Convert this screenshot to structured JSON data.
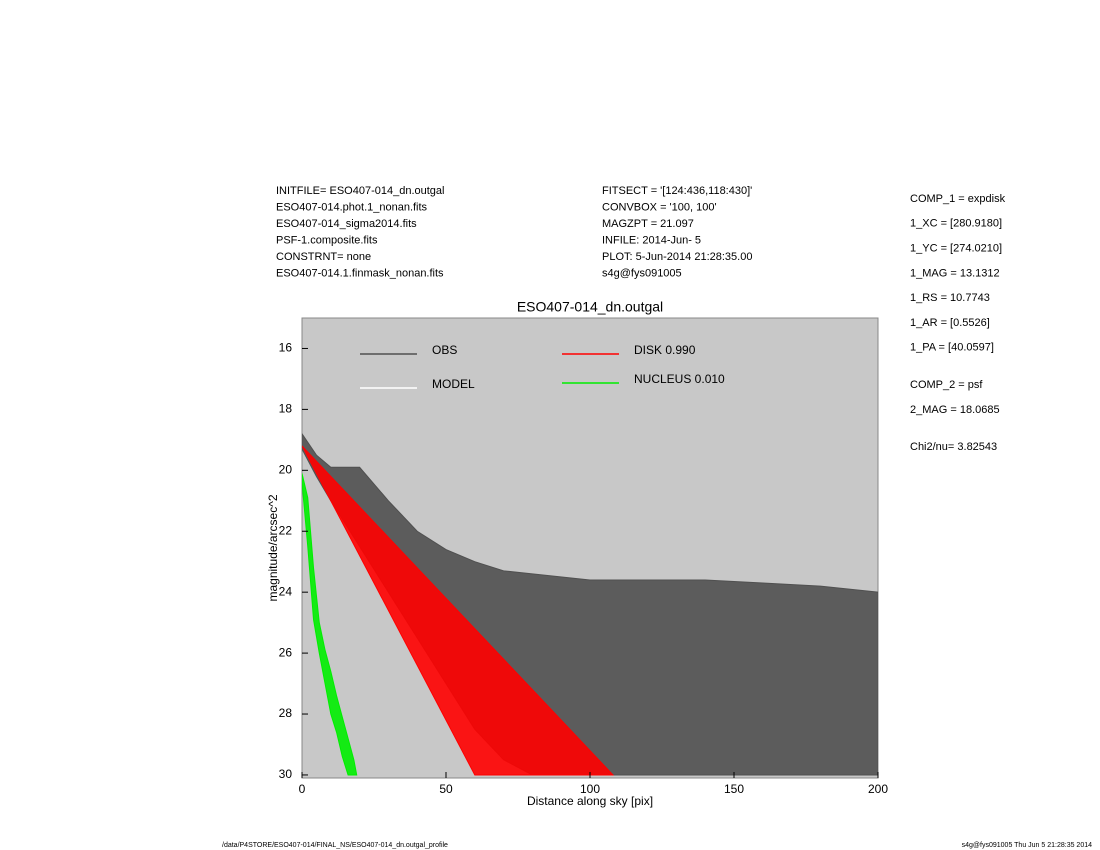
{
  "header_left": [
    "INITFILE= ESO407-014_dn.outgal",
    "ESO407-014.phot.1_nonan.fits",
    "ESO407-014_sigma2014.fits",
    "PSF-1.composite.fits",
    "CONSTRNT= none",
    "ESO407-014.1.finmask_nonan.fits"
  ],
  "header_middle": [
    "FITSECT = '[124:436,118:430]'",
    "CONVBOX = '100, 100'",
    "MAGZPT =              21.097",
    "INFILE: 2014-Jun- 5",
    "PLOT:  5-Jun-2014 21:28:35.00",
    "s4g@fys091005"
  ],
  "params_1": [
    "COMP_1  = expdisk",
    "1_XC    = [280.9180]",
    "1_YC    = [274.0210]",
    "1_MAG   = 13.1312",
    "1_RS    = 10.7743",
    "1_AR    = [0.5526]",
    "1_PA    = [40.0597]"
  ],
  "params_2": [
    "COMP_2  = psf",
    "2_MAG   = 18.0685"
  ],
  "chi2": "Chi2/nu=      3.82543",
  "footer_left": "/data/P4STORE/ESO407-014/FINAL_NS/ESO407-014_dn.outgal_profile",
  "footer_right": "s4g@fys091005  Thu Jun  5 21:28:35 2014",
  "chart_data": {
    "type": "band",
    "title": "ESO407-014_dn.outgal",
    "x_label": "Distance along sky [pix]",
    "y_label": "magnitude/arcsec^2",
    "xlim": [
      0,
      200
    ],
    "xticks": [
      0,
      50,
      100,
      150,
      200
    ],
    "ylim": [
      15,
      30.1
    ],
    "yticks": [
      16,
      18,
      20,
      22,
      24,
      26,
      28,
      30
    ],
    "y_inverted": true,
    "background": "#c8c8c8",
    "series": [
      {
        "name": "OBS",
        "color": "#505050",
        "x": [
          0,
          5,
          10,
          20,
          30,
          40,
          50,
          60,
          70,
          80,
          100,
          120,
          140,
          160,
          180,
          200
        ],
        "low": [
          18.8,
          19.5,
          19.9,
          19.9,
          21.0,
          22.0,
          22.6,
          23.0,
          23.3,
          23.4,
          23.6,
          23.6,
          23.6,
          23.7,
          23.8,
          24.0
        ],
        "high": [
          19.3,
          20.2,
          21.0,
          22.5,
          24.0,
          25.5,
          27.0,
          28.5,
          29.5,
          30.0,
          30.0,
          30.0,
          30.0,
          30.0,
          30.0,
          30.0
        ]
      },
      {
        "name": "MODEL",
        "color": "#ffffff",
        "x": [],
        "low": [],
        "high": []
      },
      {
        "name": "DISK  0.990",
        "color": "#ff0000",
        "x": [
          0,
          20,
          40,
          60,
          80,
          100,
          108
        ],
        "low": [
          19.2,
          21.2,
          23.2,
          25.2,
          27.2,
          29.2,
          30.0
        ],
        "high": [
          19.2,
          22.8,
          26.4,
          30.0,
          30.0,
          30.0,
          30.0
        ]
      },
      {
        "name": "NUCLEUS  0.010",
        "color": "#00ee00",
        "x": [
          0,
          2,
          4,
          6,
          8,
          10,
          12,
          14,
          16,
          18,
          19
        ],
        "low": [
          20.1,
          20.9,
          23.2,
          25.0,
          25.9,
          26.6,
          27.4,
          28.1,
          28.8,
          29.5,
          30.0
        ],
        "high": [
          20.4,
          22.5,
          24.9,
          26.0,
          27.0,
          28.0,
          28.6,
          29.4,
          30.0,
          30.0,
          30.0
        ]
      }
    ]
  }
}
